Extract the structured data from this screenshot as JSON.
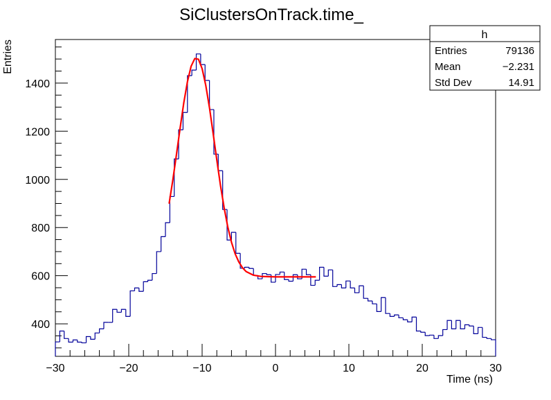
{
  "chart_data": {
    "type": "histogram",
    "title": "SiClustersOnTrack.time_",
    "xlabel": "Time (ns)",
    "ylabel": "Entries",
    "xlim": [
      -30,
      30
    ],
    "ylim": [
      265,
      1581
    ],
    "grid": false,
    "bin_edges_range": [
      -30,
      30
    ],
    "bins": 100,
    "x_ticks": [
      -30,
      -20,
      -10,
      0,
      10,
      20,
      30
    ],
    "x_tick_labels": [
      "−30",
      "−20",
      "−10",
      "0",
      "10",
      "20",
      "30"
    ],
    "y_ticks": [
      400,
      600,
      800,
      1000,
      1200,
      1400
    ],
    "y_tick_labels": [
      "400",
      "600",
      "800",
      "1000",
      "1200",
      "1400"
    ],
    "line_color": "#000099",
    "fit_color": "#ff0000",
    "values": [
      325,
      370,
      339,
      324,
      333,
      324,
      321,
      347,
      336,
      362,
      379,
      406,
      406,
      460,
      448,
      460,
      431,
      537,
      549,
      535,
      575,
      581,
      609,
      700,
      762,
      820,
      929,
      1085,
      1206,
      1278,
      1431,
      1454,
      1521,
      1477,
      1411,
      1290,
      1105,
      1036,
      875,
      748,
      780,
      693,
      631,
      635,
      630,
      601,
      587,
      609,
      604,
      573,
      605,
      615,
      584,
      577,
      604,
      587,
      627,
      604,
      560,
      581,
      635,
      598,
      624,
      555,
      563,
      549,
      578,
      549,
      529,
      558,
      506,
      495,
      483,
      451,
      509,
      443,
      431,
      437,
      425,
      417,
      408,
      428,
      370,
      365,
      351,
      353,
      339,
      351,
      376,
      414,
      379,
      414,
      379,
      396,
      391,
      359,
      385,
      344,
      339,
      334
    ],
    "fit": {
      "x": [
        -14.5,
        -14,
        -13.5,
        -13,
        -12.5,
        -12,
        -11.5,
        -11,
        -10.5,
        -10,
        -9.5,
        -9,
        -8.5,
        -8,
        -7.5,
        -7,
        -6.5,
        -6,
        -5.5,
        -5,
        -4.5,
        -4,
        -3,
        -2,
        0,
        5.5
      ],
      "y": [
        899,
        996,
        1103,
        1213,
        1318,
        1406,
        1470,
        1502,
        1499,
        1460,
        1390,
        1298,
        1191,
        1081,
        975,
        882,
        802,
        739,
        691,
        657,
        633,
        617,
        602,
        597,
        595,
        595
      ]
    },
    "stats_box": {
      "name": "h",
      "rows": [
        {
          "label": "Entries",
          "value": "79136"
        },
        {
          "label": "Mean",
          "value": "−2.231"
        },
        {
          "label": "Std Dev",
          "value": "14.91"
        }
      ]
    },
    "legend_position": "top-right"
  }
}
